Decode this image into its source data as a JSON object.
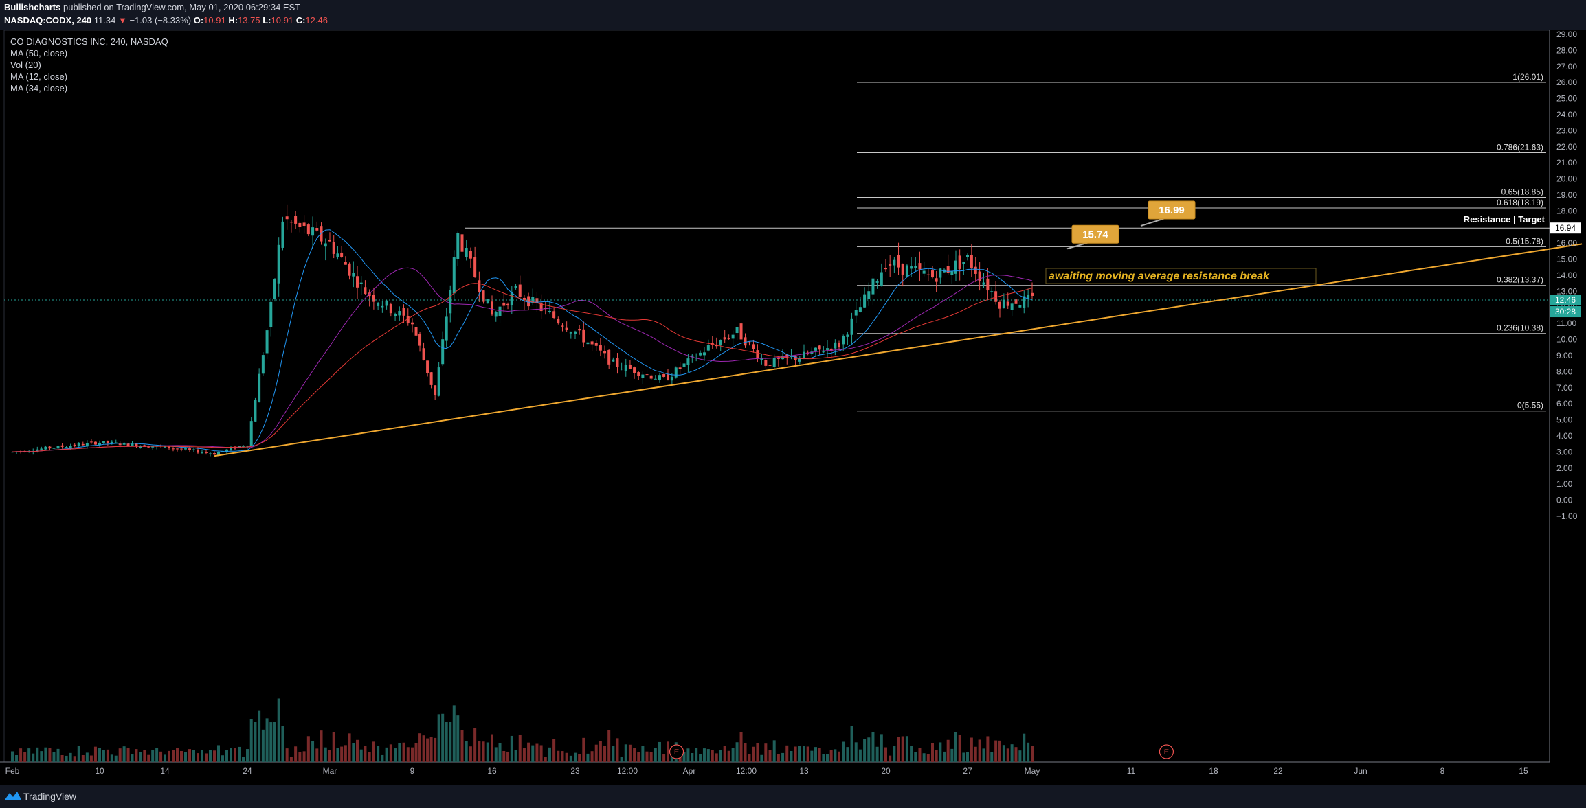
{
  "header": {
    "author": "Bullishcharts",
    "published_text": "published on TradingView.com, May 01, 2020 06:29:34 EST",
    "symbol": "NASDAQ:CODX, 240",
    "last": "11.34",
    "change": "−1.03 (−8.33%)",
    "o_label": "O:",
    "o_val": "10.91",
    "h_label": "H:",
    "h_val": "13.75",
    "l_label": "L:",
    "l_val": "10.91",
    "c_label": "C:",
    "c_val": "12.46"
  },
  "legend": {
    "title": "CO DIAGNOSTICS INC, 240, NASDAQ",
    "items": [
      "MA (50, close)",
      "Vol (20)",
      "MA (12, close)",
      "MA (34, close)"
    ]
  },
  "footer": {
    "brand": "TradingView"
  },
  "colors": {
    "background": "#000000",
    "up": "#26a69a",
    "down": "#ef5350",
    "trendline": "#f0a830",
    "ma12": "#2196f3",
    "ma34": "#9c27b0",
    "ma50": "#e53935",
    "fib": "#c8c8c8",
    "callout": "#e0a53a",
    "price_label": "#26a69a"
  },
  "chart_data": {
    "type": "candlestick",
    "symbol": "NASDAQ:CODX",
    "timeframe": "240",
    "y_range": [
      -1.5,
      29.0
    ],
    "y_ticks": [
      "29.00",
      "28.00",
      "27.00",
      "26.00",
      "25.00",
      "24.00",
      "23.00",
      "22.00",
      "21.00",
      "20.00",
      "19.00",
      "18.00",
      "17.00",
      "16.00",
      "15.00",
      "14.00",
      "13.00",
      "12.00",
      "11.00",
      "10.00",
      "9.00",
      "8.00",
      "7.00",
      "6.00",
      "5.00",
      "4.00",
      "3.00",
      "2.00",
      "1.00",
      "0.00",
      "−1.00"
    ],
    "x_ticks": [
      "Feb",
      "10",
      "14",
      "24",
      "Mar",
      "9",
      "16",
      "23",
      "12:00",
      "Apr",
      "12:00",
      "13",
      "20",
      "27",
      "May",
      "11",
      "18",
      "22",
      "Jun",
      "8",
      "15"
    ],
    "events": [
      {
        "label": "E",
        "date": "Mar 31"
      },
      {
        "label": "E",
        "date": "May 14"
      }
    ],
    "last_price": "12.46",
    "countdown": "30:28",
    "resistance_price": "16.94",
    "fib_levels": [
      {
        "label": "1(26.01)",
        "value": 26.01
      },
      {
        "label": "0.786(21.63)",
        "value": 21.63
      },
      {
        "label": "0.65(18.85)",
        "value": 18.85
      },
      {
        "label": "0.618(18.19)",
        "value": 18.19
      },
      {
        "label": "0.5(15.78)",
        "value": 15.78
      },
      {
        "label": "0.382(13.37)",
        "value": 13.37
      },
      {
        "label": "0.236(10.38)",
        "value": 10.38
      },
      {
        "label": "0(5.55)",
        "value": 5.55
      }
    ],
    "resistance_line": {
      "value": 16.94,
      "label": "Resistance | Target"
    },
    "callouts": [
      {
        "text": "15.74",
        "value": 15.74
      },
      {
        "text": "16.99",
        "value": 16.99
      }
    ],
    "annotation": "awaiting moving average resistance break",
    "trendline": {
      "from": {
        "date": "Feb 20",
        "value": 2.75
      },
      "to": {
        "date": "Jun 20",
        "value": 15.95
      }
    },
    "key_closes": [
      {
        "date": "Feb 3",
        "close": 3.0
      },
      {
        "date": "Feb 10",
        "close": 3.6
      },
      {
        "date": "Feb 14",
        "close": 3.3
      },
      {
        "date": "Feb 20",
        "close": 2.9
      },
      {
        "date": "Feb 24",
        "close": 3.5
      },
      {
        "date": "Feb 26",
        "close": 12.0
      },
      {
        "date": "Feb 27",
        "close": 17.5
      },
      {
        "date": "Mar 2",
        "close": 16.0
      },
      {
        "date": "Mar 5",
        "close": 13.0
      },
      {
        "date": "Mar 9",
        "close": 11.0
      },
      {
        "date": "Mar 11",
        "close": 6.5
      },
      {
        "date": "Mar 13",
        "close": 16.5
      },
      {
        "date": "Mar 16",
        "close": 11.5
      },
      {
        "date": "Mar 18",
        "close": 13.0
      },
      {
        "date": "Mar 23",
        "close": 10.5
      },
      {
        "date": "Mar 26",
        "close": 8.5
      },
      {
        "date": "Mar 30",
        "close": 7.5
      },
      {
        "date": "Apr 3",
        "close": 9.5
      },
      {
        "date": "Apr 6",
        "close": 10.5
      },
      {
        "date": "Apr 9",
        "close": 8.5
      },
      {
        "date": "Apr 13",
        "close": 9.0
      },
      {
        "date": "Apr 16",
        "close": 9.7
      },
      {
        "date": "Apr 20",
        "close": 14.8
      },
      {
        "date": "Apr 24",
        "close": 13.9
      },
      {
        "date": "Apr 27",
        "close": 15.0
      },
      {
        "date": "Apr 29",
        "close": 12.3
      },
      {
        "date": "May 1",
        "close": 12.46
      }
    ]
  }
}
